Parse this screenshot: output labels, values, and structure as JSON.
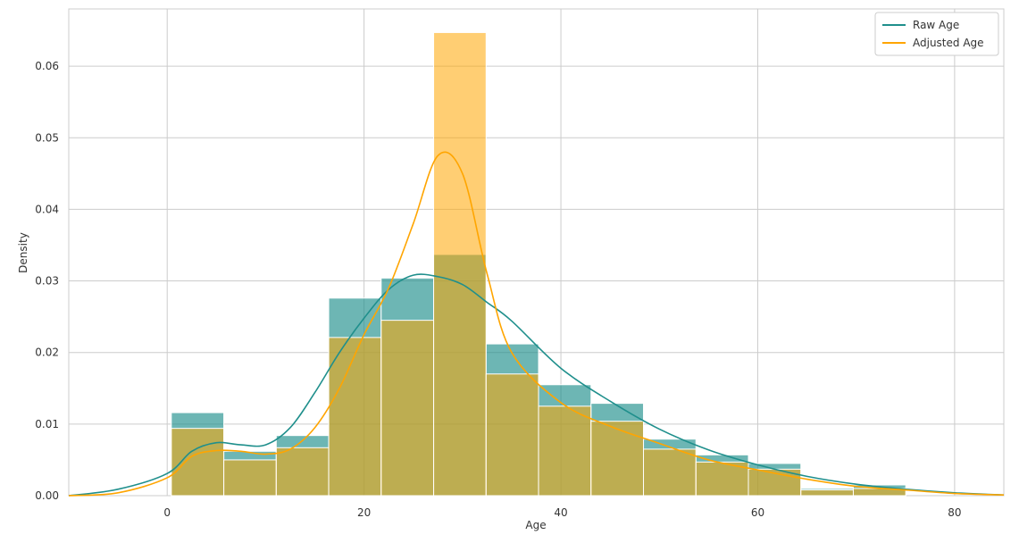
{
  "chart_data": {
    "type": "histogram",
    "xlabel": "Age",
    "ylabel": "Density",
    "bins": [
      0.42,
      5.75,
      11.08,
      16.41,
      21.74,
      27.07,
      32.4,
      37.73,
      43.06,
      48.39,
      53.72,
      59.05,
      64.38,
      69.71,
      75.04
    ],
    "kde_x": [
      -10,
      -5,
      0,
      2.5,
      5,
      7.5,
      10,
      12.5,
      15,
      17.5,
      20,
      22.5,
      25,
      27.5,
      30,
      32.5,
      35,
      40,
      45,
      50,
      55,
      60,
      65,
      70,
      75,
      80,
      85
    ],
    "series": [
      {
        "name": "Raw Age",
        "color": "#1f8f8c",
        "values": [
          0.0116,
          0.0062,
          0.0084,
          0.0276,
          0.0304,
          0.0337,
          0.0212,
          0.0155,
          0.0129,
          0.0079,
          0.0057,
          0.0045,
          0.001,
          0.0015
        ],
        "kde": [
          0,
          0.0009,
          0.0031,
          0.0062,
          0.0074,
          0.0071,
          0.0071,
          0.0095,
          0.0144,
          0.02,
          0.0248,
          0.0288,
          0.0308,
          0.0306,
          0.0295,
          0.027,
          0.0244,
          0.0178,
          0.0132,
          0.0093,
          0.0064,
          0.0043,
          0.0027,
          0.0016,
          0.0009,
          0.0004,
          0.0001
        ]
      },
      {
        "name": "Adjusted Age",
        "color": "#ffa500",
        "values": [
          0.0094,
          0.005,
          0.0067,
          0.0221,
          0.0245,
          0.0647,
          0.017,
          0.0125,
          0.0104,
          0.0065,
          0.0047,
          0.0037,
          0.0008,
          0.001
        ],
        "kde": [
          0,
          0.0004,
          0.0025,
          0.0055,
          0.0063,
          0.0062,
          0.0058,
          0.0065,
          0.0095,
          0.015,
          0.0225,
          0.029,
          0.038,
          0.0475,
          0.045,
          0.031,
          0.02,
          0.013,
          0.0097,
          0.0073,
          0.005,
          0.0036,
          0.0023,
          0.0013,
          0.0008,
          0.0003,
          0.0001
        ]
      }
    ],
    "xlim": [
      -10,
      85
    ],
    "ylim": [
      0,
      0.068
    ],
    "xticks": [
      0,
      20,
      40,
      60,
      80
    ],
    "yticks": [
      {
        "value": 0,
        "label": "0.00"
      },
      0.01,
      0.02,
      0.03,
      0.04,
      0.05,
      0.06
    ],
    "grid": true,
    "legend": "upper right"
  }
}
